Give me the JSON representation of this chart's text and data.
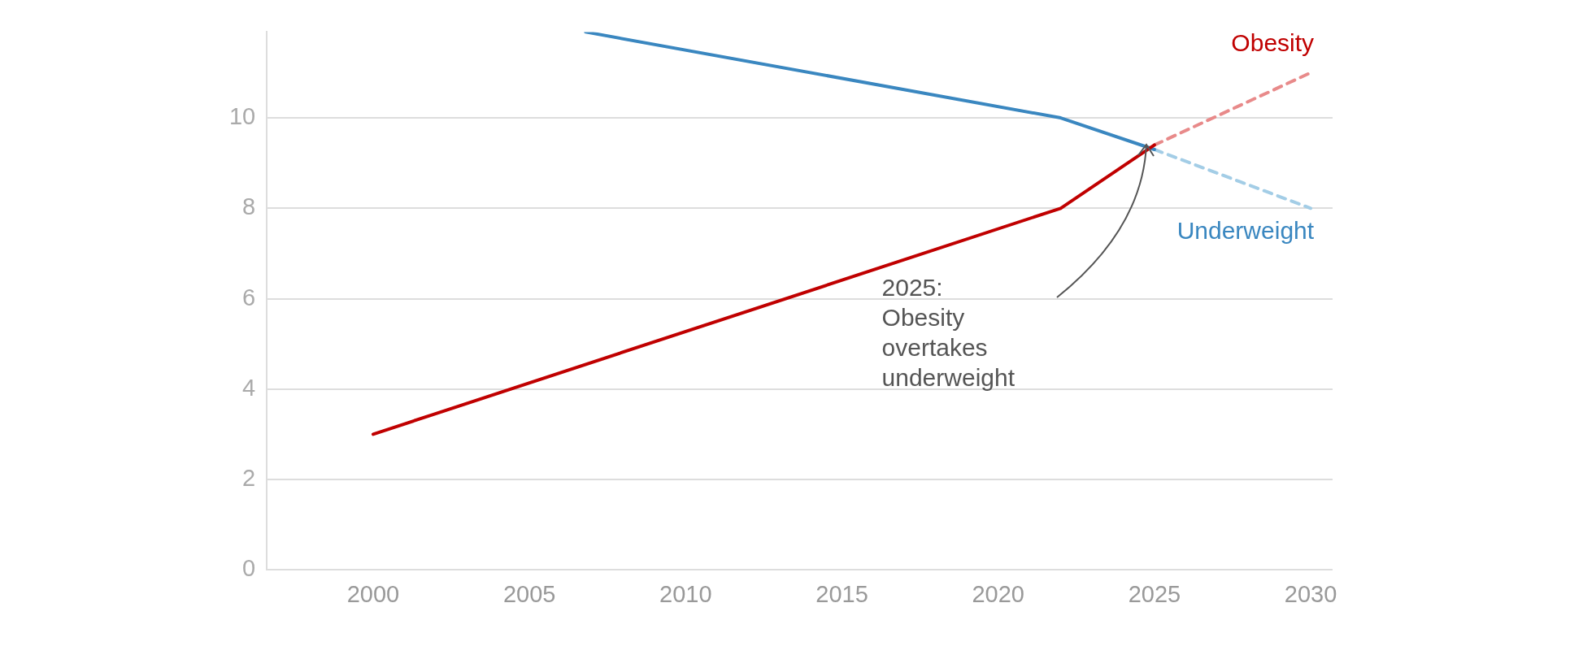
{
  "chart_data": {
    "type": "line",
    "xlim": [
      1996.6,
      2030.7
    ],
    "ylim": [
      0,
      11.9
    ],
    "xticks": [
      2000,
      2005,
      2010,
      2015,
      2020,
      2025,
      2030
    ],
    "yticks": [
      0,
      2,
      4,
      6,
      8,
      10
    ],
    "grid": "y",
    "legend": false,
    "marker": "none",
    "series": [
      {
        "color": "#c00000",
        "x": [
          2000,
          2022,
          2025
        ],
        "values": [
          3.0,
          8.0,
          9.4
        ],
        "line_style": "solid"
      },
      {
        "name": "Obesity",
        "color": "#e88a8a",
        "x": [
          2025,
          2030
        ],
        "values": [
          9.4,
          11.0
        ],
        "line_style": "dashed"
      },
      {
        "color": "#3a87c0",
        "x": [
          2006.8,
          2022,
          2025
        ],
        "values": [
          11.9,
          10.0,
          9.3
        ],
        "line_style": "solid"
      },
      {
        "name": "Underweight",
        "color": "#a3cde6",
        "x": [
          2025,
          2030
        ],
        "values": [
          9.3,
          8.0
        ],
        "line_style": "dashed"
      }
    ],
    "annotations": [
      "2025:\nObesity\novertakes\nunderweight"
    ]
  }
}
